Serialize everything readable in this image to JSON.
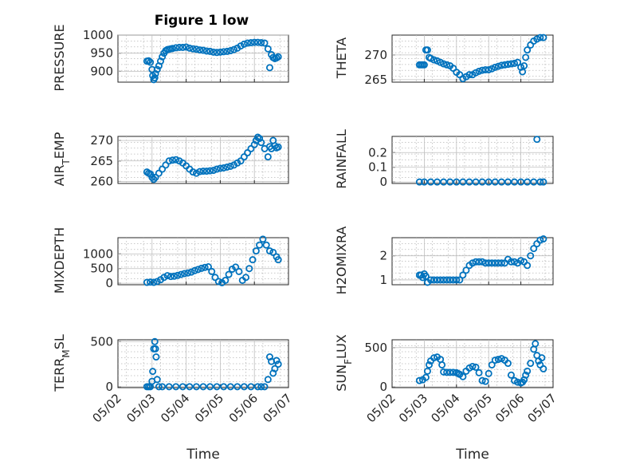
{
  "figure": {
    "title": "Figure 1 low",
    "marker_color": "#0072BD",
    "x_tick_labels": [
      "05/02",
      "05/03",
      "05/04",
      "05/05",
      "05/06",
      "05/07"
    ],
    "x_axis_label": "Time"
  },
  "chart_data": [
    {
      "type": "scatter",
      "panel": "top-left",
      "title": "Figure 1 low",
      "ylabel": "PRESSURE",
      "xlabel": "",
      "xlim": [
        0,
        5
      ],
      "ylim": [
        870,
        1000
      ],
      "yticks": [
        900,
        950,
        1000
      ],
      "ytick_labels": [
        "900",
        "950",
        "1000"
      ],
      "grid": true,
      "x": [
        0.85,
        0.9,
        0.95,
        1.0,
        1.02,
        1.05,
        1.08,
        1.1,
        1.15,
        1.2,
        1.25,
        1.3,
        1.35,
        1.4,
        1.45,
        1.5,
        1.55,
        1.6,
        1.7,
        1.8,
        1.9,
        2.0,
        2.1,
        2.2,
        2.3,
        2.4,
        2.5,
        2.6,
        2.7,
        2.8,
        2.9,
        3.0,
        3.1,
        3.2,
        3.3,
        3.4,
        3.5,
        3.6,
        3.7,
        3.8,
        3.9,
        4.0,
        4.1,
        4.2,
        4.3,
        4.4,
        4.45,
        4.5,
        4.55,
        4.6,
        4.65,
        4.7
      ],
      "y": [
        928,
        929,
        925,
        905,
        888,
        877,
        882,
        893,
        905,
        915,
        928,
        940,
        950,
        957,
        960,
        961,
        962,
        963,
        965,
        966,
        966,
        967,
        964,
        962,
        961,
        959,
        958,
        956,
        955,
        953,
        952,
        953,
        954,
        955,
        957,
        960,
        964,
        970,
        975,
        978,
        979,
        980,
        980,
        979,
        978,
        962,
        910,
        946,
        938,
        935,
        937,
        940
      ]
    },
    {
      "type": "scatter",
      "panel": "top-right",
      "ylabel": "THETA",
      "xlabel": "",
      "xlim": [
        0,
        5
      ],
      "ylim": [
        264.5,
        274
      ],
      "yticks": [
        265,
        270
      ],
      "ytick_labels": [
        "265",
        "270"
      ],
      "grid": true,
      "x": [
        0.85,
        0.9,
        0.95,
        1.0,
        1.05,
        1.1,
        1.15,
        1.2,
        1.3,
        1.4,
        1.5,
        1.6,
        1.7,
        1.8,
        1.9,
        2.0,
        2.1,
        2.2,
        2.3,
        2.4,
        2.5,
        2.6,
        2.7,
        2.8,
        2.9,
        3.0,
        3.1,
        3.2,
        3.3,
        3.4,
        3.5,
        3.6,
        3.7,
        3.8,
        3.9,
        4.0,
        4.05,
        4.1,
        4.15,
        4.2,
        4.3,
        4.4,
        4.5,
        4.6,
        4.7
      ],
      "y": [
        268,
        268,
        268,
        268,
        271,
        271,
        269.5,
        269.3,
        269,
        268.8,
        268.5,
        268.2,
        268,
        267.8,
        267.3,
        266.5,
        266,
        265.2,
        265.6,
        266,
        266,
        266.4,
        266.7,
        266.9,
        267,
        267,
        267.2,
        267.5,
        267.7,
        267.9,
        268,
        268.1,
        268.2,
        268.3,
        268.5,
        267.5,
        266.6,
        267.8,
        269.5,
        271,
        272,
        272.8,
        273.2,
        273.5,
        273.5
      ]
    },
    {
      "type": "scatter",
      "panel": "middle-left-1",
      "ylabel": "AIR_TEMP",
      "xlabel": "",
      "xlim": [
        0,
        5
      ],
      "ylim": [
        259.5,
        271
      ],
      "yticks": [
        260,
        265,
        270
      ],
      "ytick_labels": [
        "260",
        "265",
        "270"
      ],
      "grid": true,
      "x": [
        0.85,
        0.9,
        0.95,
        1.0,
        1.05,
        1.1,
        1.2,
        1.3,
        1.4,
        1.5,
        1.6,
        1.7,
        1.8,
        1.9,
        2.0,
        2.1,
        2.2,
        2.3,
        2.4,
        2.5,
        2.6,
        2.7,
        2.8,
        2.9,
        3.0,
        3.1,
        3.2,
        3.3,
        3.4,
        3.5,
        3.6,
        3.7,
        3.8,
        3.9,
        4.0,
        4.05,
        4.1,
        4.15,
        4.2,
        4.3,
        4.4,
        4.45,
        4.5,
        4.55,
        4.6,
        4.65,
        4.7
      ],
      "y": [
        262.3,
        262,
        261.8,
        261,
        260.5,
        261,
        262,
        263,
        264,
        265,
        265.2,
        265.3,
        265,
        264.5,
        263.8,
        263,
        262.3,
        262,
        262.4,
        262.5,
        262.5,
        262.6,
        262.7,
        263,
        263.2,
        263.3,
        263.5,
        263.7,
        264,
        264.5,
        265,
        266,
        267,
        268,
        269,
        270,
        270.8,
        270.5,
        269.5,
        268,
        266,
        268.5,
        268,
        270,
        268.7,
        268.2,
        268.4
      ]
    },
    {
      "type": "scatter",
      "panel": "middle-right-1",
      "ylabel": "RAINFALL",
      "xlabel": "",
      "xlim": [
        0,
        5
      ],
      "ylim": [
        -0.01,
        0.31
      ],
      "yticks": [
        0,
        0.1,
        0.2
      ],
      "ytick_labels": [
        "0",
        "0.1",
        "0.2"
      ],
      "grid": true,
      "x": [
        0.85,
        1.0,
        1.2,
        1.4,
        1.6,
        1.8,
        2.0,
        2.2,
        2.4,
        2.6,
        2.8,
        3.0,
        3.2,
        3.4,
        3.6,
        3.8,
        4.0,
        4.2,
        4.4,
        4.5,
        4.6,
        4.7
      ],
      "y": [
        0,
        0,
        0,
        0,
        0,
        0,
        0,
        0,
        0,
        0,
        0,
        0,
        0,
        0,
        0,
        0,
        0,
        0,
        0,
        0.29,
        0,
        0
      ]
    },
    {
      "type": "scatter",
      "panel": "middle-left-2",
      "ylabel": "MIXDEPTH",
      "xlabel": "",
      "xlim": [
        0,
        5
      ],
      "ylim": [
        -50,
        1550
      ],
      "yticks": [
        0,
        500,
        1000
      ],
      "ytick_labels": [
        "0",
        "500",
        "1000"
      ],
      "grid": true,
      "x": [
        0.85,
        0.95,
        1.05,
        1.15,
        1.25,
        1.35,
        1.45,
        1.55,
        1.65,
        1.75,
        1.85,
        1.95,
        2.05,
        2.15,
        2.25,
        2.35,
        2.45,
        2.55,
        2.65,
        2.75,
        2.85,
        2.95,
        3.05,
        3.15,
        3.25,
        3.35,
        3.45,
        3.55,
        3.65,
        3.75,
        3.85,
        3.95,
        4.05,
        4.15,
        4.25,
        4.35,
        4.45,
        4.55,
        4.65,
        4.7
      ],
      "y": [
        30,
        40,
        30,
        60,
        120,
        200,
        260,
        230,
        240,
        270,
        300,
        330,
        350,
        380,
        430,
        470,
        510,
        540,
        560,
        400,
        200,
        60,
        20,
        100,
        300,
        480,
        550,
        400,
        100,
        200,
        500,
        800,
        1100,
        1300,
        1500,
        1300,
        1100,
        1050,
        900,
        800
      ]
    },
    {
      "type": "scatter",
      "panel": "middle-right-2",
      "ylabel": "H2OMIXRA",
      "xlabel": "",
      "xlim": [
        0,
        5
      ],
      "ylim": [
        0.8,
        2.75
      ],
      "yticks": [
        1,
        2
      ],
      "ytick_labels": [
        "1",
        "2"
      ],
      "grid": true,
      "x": [
        0.85,
        0.9,
        0.95,
        1.0,
        1.05,
        1.1,
        1.2,
        1.3,
        1.4,
        1.5,
        1.6,
        1.7,
        1.8,
        1.9,
        2.0,
        2.1,
        2.2,
        2.3,
        2.4,
        2.5,
        2.6,
        2.7,
        2.8,
        2.9,
        3.0,
        3.1,
        3.2,
        3.3,
        3.4,
        3.5,
        3.6,
        3.7,
        3.8,
        3.9,
        4.0,
        4.1,
        4.2,
        4.3,
        4.4,
        4.5,
        4.6,
        4.7
      ],
      "y": [
        1.2,
        1.2,
        1.1,
        1.25,
        1.15,
        0.9,
        1.0,
        1.0,
        1.0,
        1.0,
        1.0,
        1.0,
        1.0,
        1.0,
        1.0,
        1.0,
        1.2,
        1.4,
        1.6,
        1.7,
        1.75,
        1.75,
        1.75,
        1.7,
        1.7,
        1.7,
        1.7,
        1.7,
        1.7,
        1.7,
        1.85,
        1.75,
        1.75,
        1.7,
        1.8,
        1.75,
        1.6,
        2.0,
        2.3,
        2.5,
        2.65,
        2.7
      ]
    },
    {
      "type": "scatter",
      "panel": "bottom-left",
      "ylabel": "TERR_MSL",
      "xlabel": "Time",
      "xlim": [
        0,
        5
      ],
      "ylim": [
        -10,
        520
      ],
      "yticks": [
        0,
        500
      ],
      "ytick_labels": [
        "0",
        "500"
      ],
      "grid": true,
      "x_tick_labels": [
        "05/02",
        "05/03",
        "05/04",
        "05/05",
        "05/06",
        "05/07"
      ],
      "x": [
        0.85,
        0.9,
        0.95,
        1.0,
        1.02,
        1.05,
        1.08,
        1.1,
        1.12,
        1.15,
        1.2,
        1.3,
        1.5,
        1.7,
        1.9,
        2.1,
        2.3,
        2.5,
        2.7,
        2.9,
        3.1,
        3.3,
        3.5,
        3.7,
        3.9,
        4.1,
        4.2,
        4.3,
        4.4,
        4.45,
        4.5,
        4.55,
        4.6,
        4.65,
        4.7
      ],
      "y": [
        0,
        0,
        0,
        60,
        170,
        420,
        500,
        420,
        330,
        80,
        0,
        0,
        0,
        0,
        0,
        0,
        0,
        0,
        0,
        0,
        0,
        0,
        0,
        0,
        0,
        0,
        0,
        0,
        80,
        330,
        280,
        150,
        200,
        290,
        250
      ]
    },
    {
      "type": "scatter",
      "panel": "bottom-right",
      "ylabel": "SUN_FLUX",
      "xlabel": "Time",
      "xlim": [
        0,
        5
      ],
      "ylim": [
        -10,
        600
      ],
      "yticks": [
        0,
        500
      ],
      "ytick_labels": [
        "0",
        "500"
      ],
      "grid": true,
      "x_tick_labels": [
        "05/02",
        "05/03",
        "05/04",
        "05/05",
        "05/06",
        "05/07"
      ],
      "x": [
        0.85,
        0.95,
        1.05,
        1.1,
        1.15,
        1.2,
        1.3,
        1.4,
        1.5,
        1.55,
        1.6,
        1.7,
        1.8,
        1.9,
        2.0,
        2.05,
        2.1,
        2.2,
        2.3,
        2.4,
        2.5,
        2.6,
        2.7,
        2.8,
        2.9,
        3.0,
        3.1,
        3.2,
        3.3,
        3.4,
        3.5,
        3.6,
        3.7,
        3.8,
        3.9,
        4.0,
        4.05,
        4.1,
        4.15,
        4.2,
        4.3,
        4.4,
        4.45,
        4.5,
        4.55,
        4.6,
        4.65,
        4.7
      ],
      "y": [
        80,
        90,
        120,
        200,
        280,
        330,
        370,
        380,
        350,
        280,
        190,
        185,
        185,
        185,
        180,
        170,
        160,
        130,
        200,
        240,
        260,
        250,
        180,
        80,
        70,
        170,
        280,
        340,
        350,
        360,
        340,
        300,
        150,
        80,
        60,
        50,
        60,
        90,
        150,
        200,
        300,
        480,
        550,
        400,
        330,
        280,
        370,
        230
      ]
    }
  ]
}
